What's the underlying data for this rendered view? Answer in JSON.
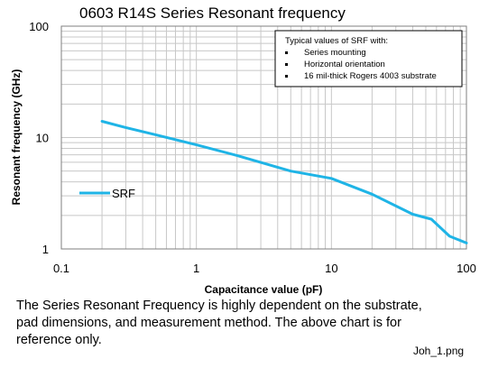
{
  "chart_data": {
    "type": "line",
    "title": "0603 R14S Series Resonant frequency",
    "xlabel": "Capacitance value (pF)",
    "ylabel": "Resonant frequency (GHz)",
    "xscale": "log",
    "yscale": "log",
    "xlim": [
      0.1,
      100
    ],
    "ylim": [
      1,
      100
    ],
    "x_tick_labels": [
      "0.1",
      "1",
      "10",
      "100"
    ],
    "y_tick_labels": [
      "1",
      "10",
      "100"
    ],
    "grid": true,
    "legend_position": "left",
    "series": [
      {
        "name": "SRF",
        "color": "#1fb4e6",
        "x": [
          0.2,
          0.3,
          0.5,
          1,
          2,
          5,
          10,
          20,
          40,
          55,
          75,
          100
        ],
        "y": [
          14,
          12.3,
          10.6,
          8.6,
          6.9,
          5.0,
          4.3,
          3.1,
          2.05,
          1.85,
          1.3,
          1.13
        ]
      }
    ],
    "annotation": {
      "heading": "Typical values of  SRF with:",
      "items": [
        "Series mounting",
        "Horizontal orientation",
        "16 mil-thick Rogers 4003  substrate"
      ]
    }
  },
  "caption": {
    "line1": "The Series Resonant Frequency is highly dependent on the substrate,",
    "line2": "pad dimensions, and measurement method. The above chart is for",
    "line3": "reference only."
  },
  "filename": "Joh_1.png"
}
